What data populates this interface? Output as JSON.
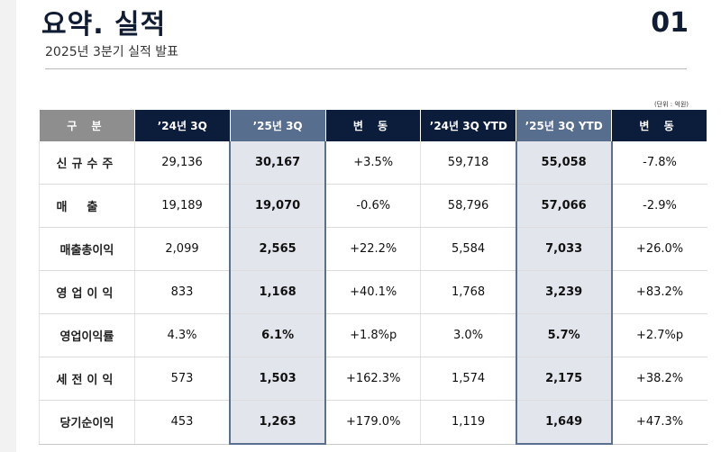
{
  "header": {
    "title": "요약. 실적",
    "subtitle": "2025년 3분기 실적 발표",
    "page_number": "01",
    "unit_note": "(단위 : 억원)"
  },
  "table": {
    "columns": [
      "구 분",
      "’24년 3Q",
      "’25년 3Q",
      "변 동",
      "’24년 3Q YTD",
      "’25년 3Q YTD",
      "변 동"
    ],
    "rows": [
      {
        "label": "신규수주",
        "values": [
          "29,136",
          "30,167",
          "+3.5%",
          "59,718",
          "55,058",
          "-7.8%"
        ]
      },
      {
        "label": "매출",
        "values": [
          "19,189",
          "19,070",
          "-0.6%",
          "58,796",
          "57,066",
          "-2.9%"
        ]
      },
      {
        "label": "매출총이익",
        "values": [
          "2,099",
          "2,565",
          "+22.2%",
          "5,584",
          "7,033",
          "+26.0%"
        ]
      },
      {
        "label": "영업이익",
        "values": [
          "833",
          "1,168",
          "+40.1%",
          "1,768",
          "3,239",
          "+83.2%"
        ]
      },
      {
        "label": "영업이익률",
        "values": [
          "4.3%",
          "6.1%",
          "+1.8%p",
          "3.0%",
          "5.7%",
          "+2.7%p"
        ]
      },
      {
        "label": "세전이익",
        "values": [
          "573",
          "1,503",
          "+162.3%",
          "1,574",
          "2,175",
          "+38.2%"
        ]
      },
      {
        "label": "당기순이익",
        "values": [
          "453",
          "1,263",
          "+179.0%",
          "1,119",
          "1,649",
          "+47.3%"
        ]
      }
    ]
  },
  "colors": {
    "header_navy": "#0c1d3b",
    "header_gray": "#8e8e8e",
    "highlight_header": "#586e8f",
    "highlight_fill": "#e2e6ec"
  }
}
